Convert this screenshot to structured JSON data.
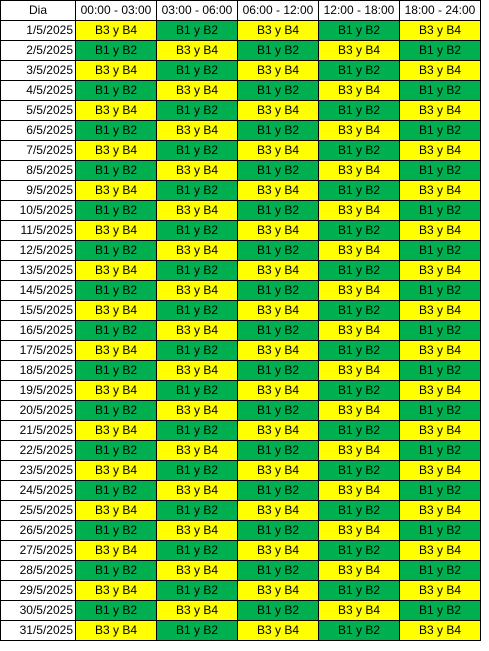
{
  "colors": {
    "B3 y B4": "#ffff00",
    "B1 y B2": "#00b050"
  },
  "headers": [
    "Dia",
    "00:00 - 03:00",
    "03:00 - 06:00",
    "06:00 - 12:00",
    "12:00 - 18:00",
    "18:00 - 24:00"
  ],
  "rows": [
    {
      "day": "1/5/2025",
      "cells": [
        "B3 y B4",
        "B1 y B2",
        "B3 y B4",
        "B1 y B2",
        "B3 y B4"
      ]
    },
    {
      "day": "2/5/2025",
      "cells": [
        "B1 y B2",
        "B3 y B4",
        "B1 y B2",
        "B3 y B4",
        "B1 y B2"
      ]
    },
    {
      "day": "3/5/2025",
      "cells": [
        "B3 y B4",
        "B1 y B2",
        "B3 y B4",
        "B1 y B2",
        "B3 y B4"
      ]
    },
    {
      "day": "4/5/2025",
      "cells": [
        "B1 y B2",
        "B3 y B4",
        "B1 y B2",
        "B3 y B4",
        "B1 y B2"
      ]
    },
    {
      "day": "5/5/2025",
      "cells": [
        "B3 y B4",
        "B1 y B2",
        "B3 y B4",
        "B1 y B2",
        "B3 y B4"
      ]
    },
    {
      "day": "6/5/2025",
      "cells": [
        "B1 y B2",
        "B3 y B4",
        "B1 y B2",
        "B3 y B4",
        "B1 y B2"
      ]
    },
    {
      "day": "7/5/2025",
      "cells": [
        "B3 y B4",
        "B1 y B2",
        "B3 y B4",
        "B1 y B2",
        "B3 y B4"
      ]
    },
    {
      "day": "8/5/2025",
      "cells": [
        "B1 y B2",
        "B3 y B4",
        "B1 y B2",
        "B3 y B4",
        "B1 y B2"
      ]
    },
    {
      "day": "9/5/2025",
      "cells": [
        "B3 y B4",
        "B1 y B2",
        "B3 y B4",
        "B1 y B2",
        "B3 y B4"
      ]
    },
    {
      "day": "10/5/2025",
      "cells": [
        "B1 y B2",
        "B3 y B4",
        "B1 y B2",
        "B3 y B4",
        "B1 y B2"
      ]
    },
    {
      "day": "11/5/2025",
      "cells": [
        "B3 y B4",
        "B1 y B2",
        "B3 y B4",
        "B1 y B2",
        "B3 y B4"
      ]
    },
    {
      "day": "12/5/2025",
      "cells": [
        "B1 y B2",
        "B3 y B4",
        "B1 y B2",
        "B3 y B4",
        "B1 y B2"
      ]
    },
    {
      "day": "13/5/2025",
      "cells": [
        "B3 y B4",
        "B1 y B2",
        "B3 y B4",
        "B1 y B2",
        "B3 y B4"
      ]
    },
    {
      "day": "14/5/2025",
      "cells": [
        "B1 y B2",
        "B3 y B4",
        "B1 y B2",
        "B3 y B4",
        "B1 y B2"
      ]
    },
    {
      "day": "15/5/2025",
      "cells": [
        "B3 y B4",
        "B1 y B2",
        "B3 y B4",
        "B1 y B2",
        "B3 y B4"
      ]
    },
    {
      "day": "16/5/2025",
      "cells": [
        "B1 y B2",
        "B3 y B4",
        "B1 y B2",
        "B3 y B4",
        "B1 y B2"
      ]
    },
    {
      "day": "17/5/2025",
      "cells": [
        "B3 y B4",
        "B1 y B2",
        "B3 y B4",
        "B1 y B2",
        "B3 y B4"
      ]
    },
    {
      "day": "18/5/2025",
      "cells": [
        "B1 y B2",
        "B3 y B4",
        "B1 y B2",
        "B3 y B4",
        "B1 y B2"
      ]
    },
    {
      "day": "19/5/2025",
      "cells": [
        "B3 y B4",
        "B1 y B2",
        "B3 y B4",
        "B1 y B2",
        "B3 y B4"
      ]
    },
    {
      "day": "20/5/2025",
      "cells": [
        "B1 y B2",
        "B3 y B4",
        "B1 y B2",
        "B3 y B4",
        "B1 y B2"
      ]
    },
    {
      "day": "21/5/2025",
      "cells": [
        "B3 y B4",
        "B1 y B2",
        "B3 y B4",
        "B1 y B2",
        "B3 y B4"
      ]
    },
    {
      "day": "22/5/2025",
      "cells": [
        "B1 y B2",
        "B3 y B4",
        "B1 y B2",
        "B3 y B4",
        "B1 y B2"
      ]
    },
    {
      "day": "23/5/2025",
      "cells": [
        "B3 y B4",
        "B1 y B2",
        "B3 y B4",
        "B1 y B2",
        "B3 y B4"
      ]
    },
    {
      "day": "24/5/2025",
      "cells": [
        "B1 y B2",
        "B3 y B4",
        "B1 y B2",
        "B3 y B4",
        "B1 y B2"
      ]
    },
    {
      "day": "25/5/2025",
      "cells": [
        "B3 y B4",
        "B1 y B2",
        "B3 y B4",
        "B1 y B2",
        "B3 y B4"
      ]
    },
    {
      "day": "26/5/2025",
      "cells": [
        "B1 y B2",
        "B3 y B4",
        "B1 y B2",
        "B3 y B4",
        "B1 y B2"
      ]
    },
    {
      "day": "27/5/2025",
      "cells": [
        "B3 y B4",
        "B1 y B2",
        "B3 y B4",
        "B1 y B2",
        "B3 y B4"
      ]
    },
    {
      "day": "28/5/2025",
      "cells": [
        "B1 y B2",
        "B3 y B4",
        "B1 y B2",
        "B3 y B4",
        "B1 y B2"
      ]
    },
    {
      "day": "29/5/2025",
      "cells": [
        "B3 y B4",
        "B1 y B2",
        "B3 y B4",
        "B1 y B2",
        "B3 y B4"
      ]
    },
    {
      "day": "30/5/2025",
      "cells": [
        "B1 y B2",
        "B3 y B4",
        "B1 y B2",
        "B3 y B4",
        "B1 y B2"
      ]
    },
    {
      "day": "31/5/2025",
      "cells": [
        "B3 y B4",
        "B1 y B2",
        "B3 y B4",
        "B1 y B2",
        "B3 y B4"
      ]
    }
  ]
}
